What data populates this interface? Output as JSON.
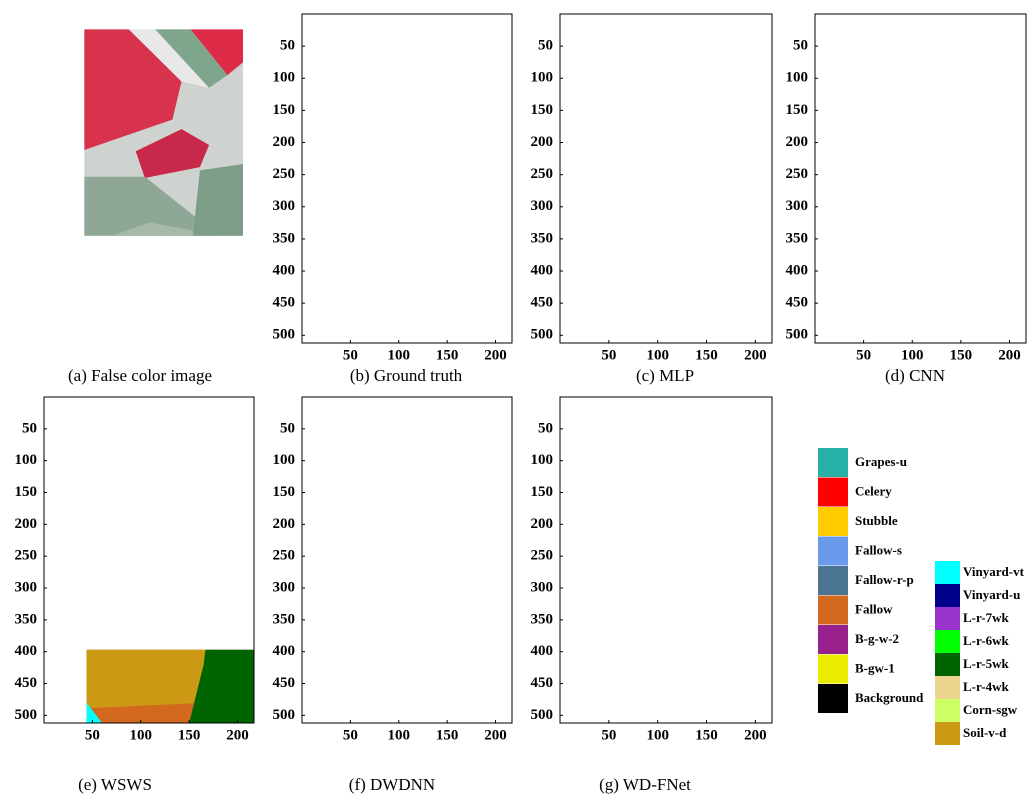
{
  "axes": {
    "xlim": [
      0,
      217
    ],
    "ylim": [
      0,
      512
    ],
    "xticks": [
      50,
      100,
      150,
      200
    ],
    "yticks": [
      50,
      100,
      150,
      200,
      250,
      300,
      350,
      400,
      450,
      500
    ]
  },
  "panels": [
    {
      "caption": "(a) False color image"
    },
    {
      "caption": "(b) Ground truth"
    },
    {
      "caption": "(c) MLP"
    },
    {
      "caption": "(d) CNN"
    },
    {
      "caption": "(e) WSWS"
    },
    {
      "caption": "(f) DWDNN"
    },
    {
      "caption": "(g) WD-FNet"
    }
  ],
  "legend": {
    "left": [
      {
        "label": "Grapes-u",
        "color": "#28b2a7"
      },
      {
        "label": "Celery",
        "color": "#ff0000"
      },
      {
        "label": "Stubble",
        "color": "#ffcc00"
      },
      {
        "label": "Fallow-s",
        "color": "#6a9aec"
      },
      {
        "label": "Fallow-r-p",
        "color": "#4b7592"
      },
      {
        "label": "Fallow",
        "color": "#d2691e"
      },
      {
        "label": "B-g-w-2",
        "color": "#98208c"
      },
      {
        "label": "B-gw-1",
        "color": "#ebeb00"
      },
      {
        "label": "Background",
        "color": "#000000"
      }
    ],
    "right": [
      {
        "label": "Vinyard-vt",
        "color": "#00ffff"
      },
      {
        "label": "Vinyard-u",
        "color": "#00008b"
      },
      {
        "label": "L-r-7wk",
        "color": "#9933cc"
      },
      {
        "label": "L-r-6wk",
        "color": "#00ff00"
      },
      {
        "label": "L-r-5wk",
        "color": "#006400"
      },
      {
        "label": "L-r-4wk",
        "color": "#ecd58c"
      },
      {
        "label": "Corn-sgw",
        "color": "#ccff66"
      },
      {
        "label": "Soil-v-d",
        "color": "#cc9914"
      }
    ]
  }
}
